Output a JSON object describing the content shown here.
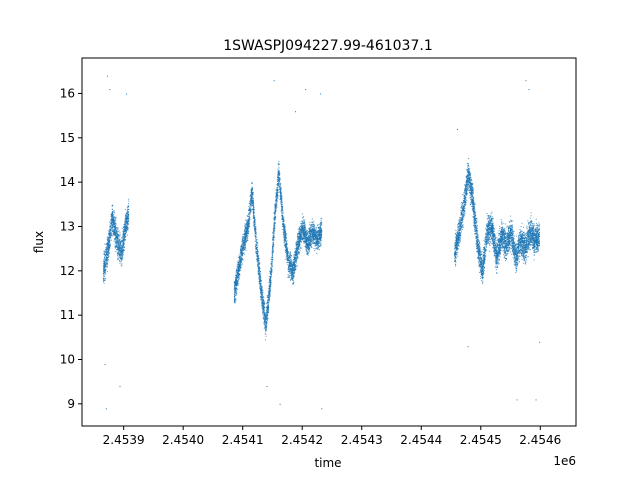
{
  "chart_data": {
    "type": "scatter",
    "title": "1SWASPJ094227.99-461037.1",
    "xlabel": "time",
    "ylabel": "flux",
    "x_offset_label": "1e6",
    "xlim": [
      2453830,
      2454660
    ],
    "ylim": [
      8.5,
      16.8
    ],
    "xticks": [
      2453900,
      2454000,
      2454100,
      2454200,
      2454300,
      2454400,
      2454500,
      2454600
    ],
    "xtick_labels": [
      "2.4539",
      "2.4540",
      "2.4541",
      "2.4542",
      "2.4543",
      "2.4544",
      "2.4545",
      "2.4546"
    ],
    "yticks": [
      9,
      10,
      11,
      12,
      13,
      14,
      15,
      16
    ],
    "ytick_labels": [
      "9",
      "10",
      "11",
      "12",
      "13",
      "14",
      "15",
      "16"
    ],
    "grid": false,
    "point_color": "#1f77b4",
    "segments": [
      {
        "x": [
          2453865,
          2453873,
          2453880,
          2453888,
          2453896,
          2453902,
          2453908
        ],
        "y": [
          12.0,
          12.5,
          13.2,
          12.7,
          12.4,
          13.0,
          13.3
        ],
        "spread": 0.45
      },
      {
        "x": [
          2454085,
          2454092,
          2454100,
          2454108,
          2454115,
          2454122,
          2454130,
          2454138,
          2454146,
          2454154,
          2454160,
          2454168,
          2454176,
          2454184,
          2454192,
          2454200,
          2454208,
          2454216,
          2454224,
          2454232
        ],
        "y": [
          11.5,
          12.0,
          12.6,
          13.0,
          13.8,
          12.6,
          11.6,
          10.8,
          11.8,
          13.4,
          14.2,
          13.0,
          12.2,
          12.0,
          12.6,
          13.0,
          12.6,
          12.9,
          12.7,
          12.9
        ],
        "spread": 0.4
      },
      {
        "x": [
          2454455,
          2454462,
          2454470,
          2454478,
          2454486,
          2454494,
          2454502,
          2454510,
          2454518,
          2454526,
          2454534,
          2454542,
          2454550,
          2454558,
          2454566,
          2454574,
          2454582,
          2454590,
          2454598
        ],
        "y": [
          12.4,
          12.8,
          13.4,
          14.2,
          13.6,
          12.6,
          12.0,
          12.9,
          13.0,
          12.3,
          12.8,
          12.6,
          12.9,
          12.3,
          12.7,
          12.5,
          12.9,
          12.7,
          12.8
        ],
        "spread": 0.45
      }
    ],
    "outliers": [
      {
        "x": 2453872,
        "y": 16.4
      },
      {
        "x": 2453876,
        "y": 16.1
      },
      {
        "x": 2453893,
        "y": 9.4
      },
      {
        "x": 2453870,
        "y": 8.9
      },
      {
        "x": 2453904,
        "y": 16.0
      },
      {
        "x": 2453868,
        "y": 9.9
      },
      {
        "x": 2454152,
        "y": 16.3
      },
      {
        "x": 2454188,
        "y": 15.6
      },
      {
        "x": 2454230,
        "y": 16.0
      },
      {
        "x": 2454232,
        "y": 8.9
      },
      {
        "x": 2454140,
        "y": 9.4
      },
      {
        "x": 2454205,
        "y": 16.1
      },
      {
        "x": 2454162,
        "y": 9.0
      },
      {
        "x": 2454580,
        "y": 16.1
      },
      {
        "x": 2454575,
        "y": 16.3
      },
      {
        "x": 2454592,
        "y": 9.1
      },
      {
        "x": 2454478,
        "y": 10.3
      },
      {
        "x": 2454598,
        "y": 10.4
      },
      {
        "x": 2454560,
        "y": 9.1
      },
      {
        "x": 2454460,
        "y": 15.2
      }
    ]
  }
}
